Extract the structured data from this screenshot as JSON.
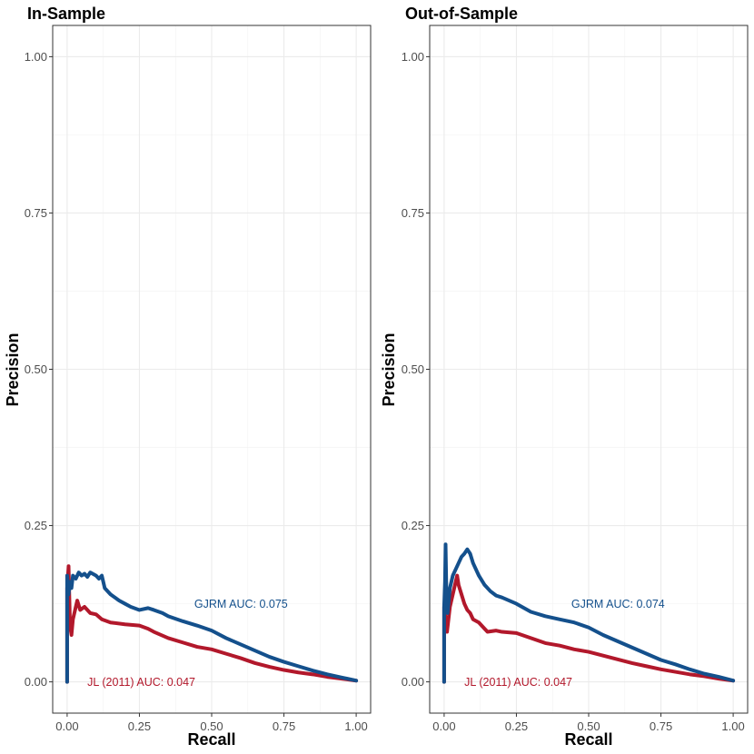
{
  "chart_data": [
    {
      "type": "line",
      "title": "In-Sample",
      "xlabel": "Recall",
      "ylabel": "Precision",
      "xlim": [
        -0.05,
        1.05
      ],
      "ylim": [
        -0.05,
        1.05
      ],
      "xticks": [
        0,
        0.25,
        0.5,
        0.75,
        1
      ],
      "xtick_labels": [
        "0.00",
        "0.25",
        "0.50",
        "0.75",
        "1.00"
      ],
      "yticks": [
        0,
        0.25,
        0.5,
        0.75,
        1
      ],
      "ytick_labels": [
        "0.00",
        "0.25",
        "0.50",
        "0.75",
        "1.00"
      ],
      "series": [
        {
          "name": "JL (2011)",
          "color": "#b2182b",
          "annotation": "JL (2011) AUC: 0.047",
          "annotation_pos": [
            0.07,
            0.0
          ],
          "points": [
            [
              0,
              0
            ],
            [
              0,
              0.15
            ],
            [
              0.005,
              0.185
            ],
            [
              0.01,
              0.09
            ],
            [
              0.015,
              0.075
            ],
            [
              0.02,
              0.1
            ],
            [
              0.03,
              0.12
            ],
            [
              0.035,
              0.13
            ],
            [
              0.045,
              0.115
            ],
            [
              0.06,
              0.12
            ],
            [
              0.08,
              0.11
            ],
            [
              0.1,
              0.108
            ],
            [
              0.12,
              0.1
            ],
            [
              0.15,
              0.095
            ],
            [
              0.2,
              0.092
            ],
            [
              0.25,
              0.09
            ],
            [
              0.28,
              0.085
            ],
            [
              0.3,
              0.08
            ],
            [
              0.35,
              0.07
            ],
            [
              0.4,
              0.063
            ],
            [
              0.45,
              0.056
            ],
            [
              0.5,
              0.052
            ],
            [
              0.55,
              0.045
            ],
            [
              0.6,
              0.038
            ],
            [
              0.65,
              0.03
            ],
            [
              0.7,
              0.024
            ],
            [
              0.75,
              0.019
            ],
            [
              0.8,
              0.015
            ],
            [
              0.85,
              0.012
            ],
            [
              0.9,
              0.008
            ],
            [
              0.95,
              0.005
            ],
            [
              1.0,
              0.002
            ]
          ]
        },
        {
          "name": "GJRM",
          "color": "#14508c",
          "annotation": "GJRM AUC: 0.075",
          "annotation_pos": [
            0.44,
            0.125
          ],
          "points": [
            [
              0,
              0
            ],
            [
              0,
              0.17
            ],
            [
              0.005,
              0.14
            ],
            [
              0.01,
              0.16
            ],
            [
              0.015,
              0.15
            ],
            [
              0.02,
              0.17
            ],
            [
              0.03,
              0.165
            ],
            [
              0.04,
              0.175
            ],
            [
              0.05,
              0.17
            ],
            [
              0.06,
              0.173
            ],
            [
              0.07,
              0.168
            ],
            [
              0.08,
              0.175
            ],
            [
              0.1,
              0.17
            ],
            [
              0.11,
              0.165
            ],
            [
              0.12,
              0.17
            ],
            [
              0.13,
              0.15
            ],
            [
              0.15,
              0.14
            ],
            [
              0.18,
              0.13
            ],
            [
              0.2,
              0.125
            ],
            [
              0.22,
              0.12
            ],
            [
              0.25,
              0.115
            ],
            [
              0.28,
              0.118
            ],
            [
              0.3,
              0.115
            ],
            [
              0.33,
              0.11
            ],
            [
              0.35,
              0.105
            ],
            [
              0.4,
              0.097
            ],
            [
              0.45,
              0.09
            ],
            [
              0.5,
              0.082
            ],
            [
              0.55,
              0.07
            ],
            [
              0.6,
              0.06
            ],
            [
              0.65,
              0.05
            ],
            [
              0.7,
              0.04
            ],
            [
              0.75,
              0.032
            ],
            [
              0.8,
              0.025
            ],
            [
              0.85,
              0.018
            ],
            [
              0.9,
              0.012
            ],
            [
              0.95,
              0.007
            ],
            [
              1.0,
              0.002
            ]
          ]
        }
      ]
    },
    {
      "type": "line",
      "title": "Out-of-Sample",
      "xlabel": "Recall",
      "ylabel": "Precision",
      "xlim": [
        -0.05,
        1.05
      ],
      "ylim": [
        -0.05,
        1.05
      ],
      "xticks": [
        0,
        0.25,
        0.5,
        0.75,
        1
      ],
      "xtick_labels": [
        "0.00",
        "0.25",
        "0.50",
        "0.75",
        "1.00"
      ],
      "yticks": [
        0,
        0.25,
        0.5,
        0.75,
        1
      ],
      "ytick_labels": [
        "0.00",
        "0.25",
        "0.50",
        "0.75",
        "1.00"
      ],
      "series": [
        {
          "name": "JL (2011)",
          "color": "#b2182b",
          "annotation": "JL (2011) AUC: 0.047",
          "annotation_pos": [
            0.07,
            0.0
          ],
          "points": [
            [
              0,
              0
            ],
            [
              0,
              0.12
            ],
            [
              0.005,
              0.1
            ],
            [
              0.01,
              0.08
            ],
            [
              0.015,
              0.1
            ],
            [
              0.02,
              0.12
            ],
            [
              0.03,
              0.14
            ],
            [
              0.04,
              0.16
            ],
            [
              0.045,
              0.17
            ],
            [
              0.05,
              0.155
            ],
            [
              0.06,
              0.14
            ],
            [
              0.07,
              0.125
            ],
            [
              0.08,
              0.115
            ],
            [
              0.09,
              0.11
            ],
            [
              0.1,
              0.1
            ],
            [
              0.12,
              0.095
            ],
            [
              0.14,
              0.085
            ],
            [
              0.15,
              0.08
            ],
            [
              0.18,
              0.082
            ],
            [
              0.2,
              0.08
            ],
            [
              0.25,
              0.078
            ],
            [
              0.3,
              0.07
            ],
            [
              0.35,
              0.062
            ],
            [
              0.4,
              0.058
            ],
            [
              0.45,
              0.052
            ],
            [
              0.5,
              0.048
            ],
            [
              0.55,
              0.042
            ],
            [
              0.6,
              0.036
            ],
            [
              0.65,
              0.03
            ],
            [
              0.7,
              0.025
            ],
            [
              0.75,
              0.02
            ],
            [
              0.8,
              0.016
            ],
            [
              0.85,
              0.012
            ],
            [
              0.9,
              0.009
            ],
            [
              0.95,
              0.005
            ],
            [
              1.0,
              0.002
            ]
          ]
        },
        {
          "name": "GJRM",
          "color": "#14508c",
          "annotation": "GJRM AUC: 0.074",
          "annotation_pos": [
            0.44,
            0.125
          ],
          "points": [
            [
              0,
              0
            ],
            [
              0,
              0.12
            ],
            [
              0.003,
              0.16
            ],
            [
              0.005,
              0.22
            ],
            [
              0.008,
              0.14
            ],
            [
              0.012,
              0.11
            ],
            [
              0.02,
              0.15
            ],
            [
              0.03,
              0.17
            ],
            [
              0.04,
              0.18
            ],
            [
              0.05,
              0.19
            ],
            [
              0.06,
              0.2
            ],
            [
              0.07,
              0.205
            ],
            [
              0.08,
              0.212
            ],
            [
              0.09,
              0.205
            ],
            [
              0.1,
              0.19
            ],
            [
              0.12,
              0.17
            ],
            [
              0.14,
              0.155
            ],
            [
              0.16,
              0.145
            ],
            [
              0.18,
              0.138
            ],
            [
              0.2,
              0.135
            ],
            [
              0.25,
              0.125
            ],
            [
              0.3,
              0.112
            ],
            [
              0.35,
              0.105
            ],
            [
              0.4,
              0.1
            ],
            [
              0.45,
              0.095
            ],
            [
              0.5,
              0.087
            ],
            [
              0.55,
              0.075
            ],
            [
              0.6,
              0.065
            ],
            [
              0.65,
              0.055
            ],
            [
              0.7,
              0.045
            ],
            [
              0.75,
              0.035
            ],
            [
              0.8,
              0.028
            ],
            [
              0.85,
              0.02
            ],
            [
              0.9,
              0.013
            ],
            [
              0.95,
              0.008
            ],
            [
              1.0,
              0.002
            ]
          ]
        }
      ]
    }
  ]
}
